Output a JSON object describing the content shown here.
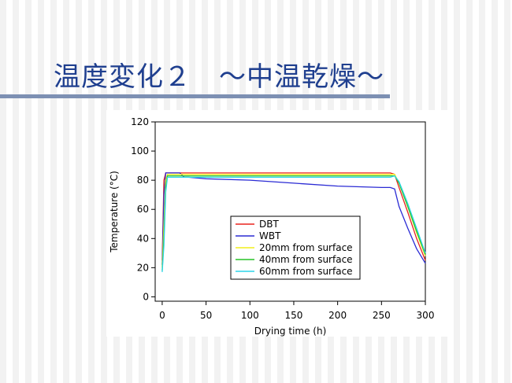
{
  "chart_data": {
    "type": "line",
    "title": "温度変化２　～中温乾燥～",
    "x_label": "Drying time (h)",
    "y_label": "Temperature (°C)",
    "x": [
      0,
      2,
      4,
      6,
      10,
      20,
      25,
      30,
      50,
      100,
      150,
      200,
      250,
      260,
      265,
      270,
      280,
      290,
      300
    ],
    "series": [
      {
        "name": "DBT",
        "color": "#e8231f",
        "values": [
          25,
          80,
          85,
          85,
          85,
          85,
          85,
          85,
          85,
          85,
          85,
          85,
          85,
          85,
          84,
          75,
          58,
          40,
          25
        ]
      },
      {
        "name": "WBT",
        "color": "#2b2bd4",
        "values": [
          22,
          70,
          85,
          85,
          85,
          85,
          82,
          82,
          81,
          80,
          78,
          76,
          75,
          75,
          74,
          62,
          47,
          33,
          23
        ]
      },
      {
        "name": "20mm from surface",
        "color": "#f2ef1a",
        "values": [
          20,
          50,
          80,
          84,
          84,
          84,
          84,
          84,
          84,
          84,
          84,
          84,
          84,
          84,
          84,
          78,
          62,
          44,
          28
        ]
      },
      {
        "name": "40mm from surface",
        "color": "#27c227",
        "values": [
          18,
          40,
          75,
          83,
          83,
          83,
          83,
          83,
          83,
          83,
          83,
          83,
          83,
          83,
          83,
          78,
          62,
          45,
          29
        ]
      },
      {
        "name": "60mm from surface",
        "color": "#2cd4e8",
        "values": [
          17,
          35,
          72,
          82,
          82,
          82,
          82,
          82,
          82,
          82,
          82,
          82,
          82,
          82,
          83,
          79,
          64,
          47,
          30
        ]
      }
    ],
    "xlim": [
      -8,
      300
    ],
    "ylim": [
      -3,
      120
    ],
    "xticks": [
      0,
      50,
      100,
      150,
      200,
      250,
      300
    ],
    "yticks": [
      0,
      20,
      40,
      60,
      80,
      100,
      120
    ],
    "legend": "center",
    "grid": false
  }
}
